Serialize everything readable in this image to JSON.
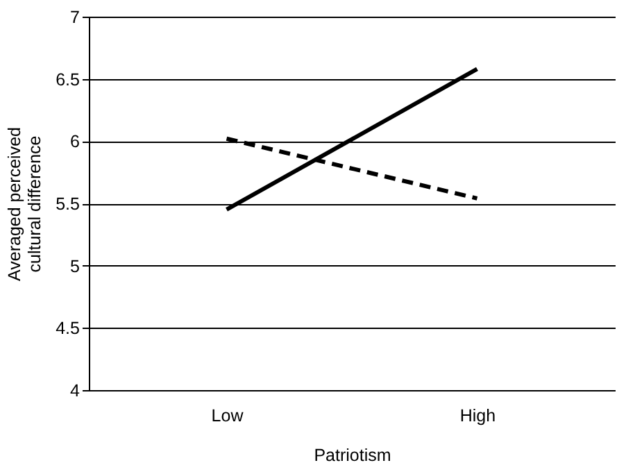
{
  "chart_data": {
    "type": "line",
    "xlabel": "Patriotism",
    "ylabel": "Averaged perceived cultural difference",
    "categories": [
      "Low",
      "High"
    ],
    "series": [
      {
        "color": "#000000",
        "line_style": "solid",
        "values": [
          5.45,
          6.58
        ]
      },
      {
        "color": "#000000",
        "line_style": "dashed",
        "values": [
          6.02,
          5.54
        ]
      }
    ],
    "ylim": [
      4,
      7
    ],
    "yticks": [
      4,
      4.5,
      5,
      5.5,
      6,
      6.5,
      7
    ],
    "grid": "y"
  }
}
